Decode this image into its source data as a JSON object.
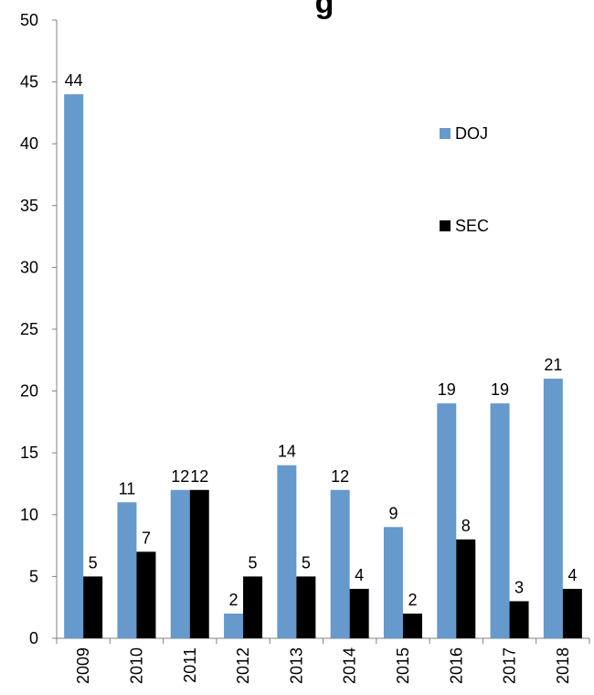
{
  "chart_data": {
    "type": "bar",
    "title": "g",
    "categories": [
      "2009",
      "2010",
      "2011",
      "2012",
      "2013",
      "2014",
      "2015",
      "2016",
      "2017",
      "2018"
    ],
    "series": [
      {
        "name": "DOJ",
        "color": "#6699cc",
        "values": [
          44,
          11,
          12,
          2,
          14,
          12,
          9,
          19,
          19,
          21
        ]
      },
      {
        "name": "SEC",
        "color": "#000000",
        "values": [
          5,
          7,
          12,
          5,
          5,
          4,
          2,
          8,
          3,
          4
        ]
      }
    ],
    "ylim": [
      0,
      50
    ],
    "yticks": [
      0,
      5,
      10,
      15,
      20,
      25,
      30,
      35,
      40,
      45,
      50
    ],
    "grid": false,
    "legend": "right, stacked vertically"
  }
}
